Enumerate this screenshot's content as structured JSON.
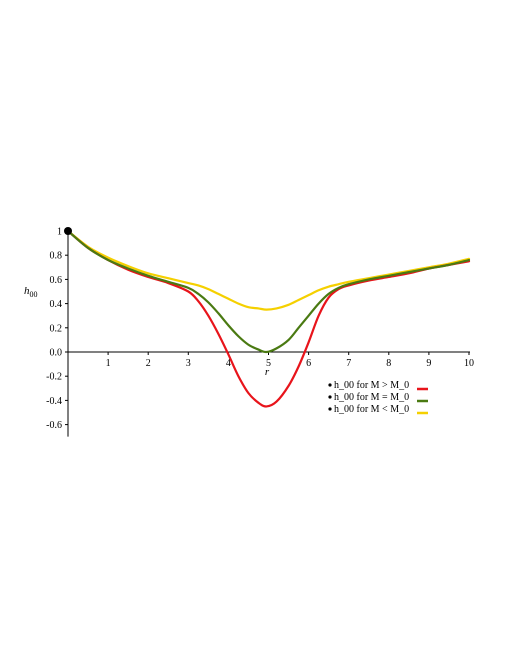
{
  "chart_data": {
    "type": "line",
    "xlabel": "r",
    "ylabel": "h",
    "ylabel_sub": "00",
    "xlim": [
      0,
      10
    ],
    "ylim": [
      -0.6,
      1.0
    ],
    "xticks": [
      "1",
      "2",
      "3",
      "4",
      "5",
      "6",
      "7",
      "8",
      "9",
      "10"
    ],
    "yticks": [
      "1",
      "0.8",
      "0.6",
      "0.4",
      "0.2",
      "0.0",
      "-0.2",
      "-0.4",
      "-0.6"
    ],
    "ytick_values": [
      1,
      0.8,
      0.6,
      0.4,
      0.2,
      0.0,
      -0.2,
      -0.4,
      -0.6
    ],
    "grid": false,
    "legend_position": "bottom-right",
    "marker": {
      "x": 0,
      "y": 1,
      "color": "#000000"
    },
    "series": [
      {
        "name": "h_00  for M > M_0",
        "color": "#e8141b",
        "x": [
          0,
          0.5,
          1,
          1.5,
          2,
          2.5,
          3,
          3.25,
          3.5,
          3.75,
          4,
          4.25,
          4.5,
          4.75,
          4.95,
          5.2,
          5.5,
          5.75,
          6,
          6.25,
          6.5,
          6.75,
          7,
          7.5,
          8,
          8.5,
          9,
          9.5,
          10
        ],
        "y": [
          1.0,
          0.86,
          0.76,
          0.68,
          0.62,
          0.57,
          0.5,
          0.42,
          0.3,
          0.15,
          -0.02,
          -0.2,
          -0.34,
          -0.42,
          -0.45,
          -0.41,
          -0.28,
          -0.12,
          0.08,
          0.3,
          0.45,
          0.52,
          0.55,
          0.59,
          0.62,
          0.65,
          0.69,
          0.72,
          0.75
        ]
      },
      {
        "name": "h_00  for M = M_0",
        "color": "#4a7a12",
        "x": [
          0,
          0.5,
          1,
          1.5,
          2,
          2.5,
          3,
          3.25,
          3.5,
          3.75,
          4,
          4.25,
          4.5,
          4.75,
          4.95,
          5.2,
          5.5,
          5.75,
          6,
          6.25,
          6.5,
          6.75,
          7,
          7.5,
          8,
          8.5,
          9,
          9.5,
          10
        ],
        "y": [
          1.0,
          0.86,
          0.76,
          0.69,
          0.63,
          0.58,
          0.53,
          0.48,
          0.41,
          0.32,
          0.22,
          0.13,
          0.06,
          0.02,
          0.0,
          0.03,
          0.1,
          0.2,
          0.3,
          0.4,
          0.48,
          0.53,
          0.56,
          0.6,
          0.63,
          0.66,
          0.69,
          0.72,
          0.76
        ]
      },
      {
        "name": "h_00  for M < M_0",
        "color": "#f5d000",
        "x": [
          0,
          0.5,
          1,
          1.5,
          2,
          2.5,
          3,
          3.25,
          3.5,
          3.75,
          4,
          4.25,
          4.5,
          4.75,
          4.95,
          5.2,
          5.5,
          5.75,
          6,
          6.25,
          6.5,
          6.75,
          7,
          7.5,
          8,
          8.5,
          9,
          9.5,
          10
        ],
        "y": [
          1.0,
          0.87,
          0.78,
          0.71,
          0.65,
          0.61,
          0.57,
          0.55,
          0.52,
          0.48,
          0.44,
          0.4,
          0.37,
          0.36,
          0.35,
          0.36,
          0.39,
          0.43,
          0.47,
          0.51,
          0.54,
          0.56,
          0.58,
          0.61,
          0.64,
          0.67,
          0.7,
          0.73,
          0.77
        ]
      }
    ]
  }
}
